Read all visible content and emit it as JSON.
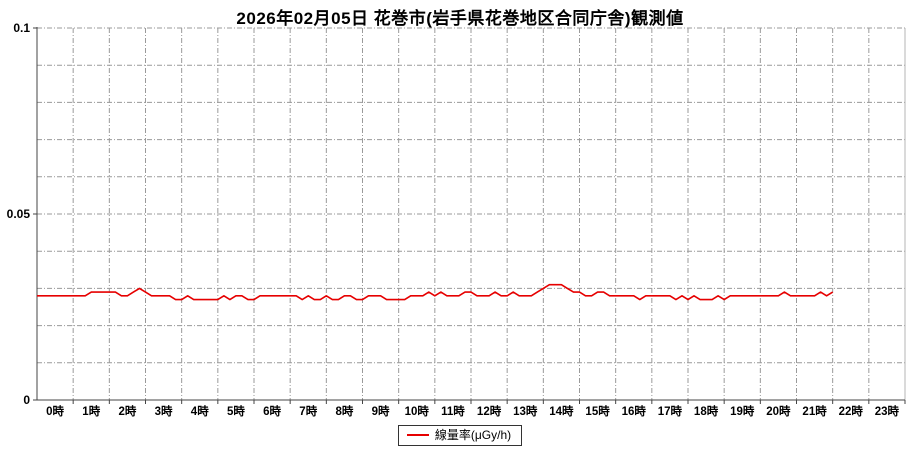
{
  "title": "2026年02月05日 花巻市(岩手県花巻地区合同庁舎)観測値",
  "legend": {
    "label": "線量率(μGy/h)",
    "line_color": "#e60000"
  },
  "chart_data": {
    "type": "line",
    "title": "2026年02月05日 花巻市(岩手県花巻地区合同庁舎)観測値",
    "xlabel": "",
    "ylabel": "",
    "unit": "μGy/h",
    "ylim": [
      0,
      0.1
    ],
    "ytick_values": [
      0,
      0.05,
      0.1
    ],
    "ytick_labels": [
      "0",
      "0.05",
      "0.1"
    ],
    "y_grid_interval": 0.01,
    "x_hours_range": [
      0,
      24
    ],
    "xtick_labels": [
      "0時",
      "1時",
      "2時",
      "3時",
      "4時",
      "5時",
      "6時",
      "7時",
      "8時",
      "9時",
      "10時",
      "11時",
      "12時",
      "13時",
      "14時",
      "15時",
      "16時",
      "17時",
      "18時",
      "19時",
      "20時",
      "21時",
      "22時",
      "23時"
    ],
    "grid": true,
    "legend_position": "bottom",
    "series": [
      {
        "name": "線量率(μGy/h)",
        "color": "#e60000",
        "start_time": "00:00",
        "end_time": "22:00",
        "interval_minutes": 10,
        "values": [
          0.028,
          0.028,
          0.028,
          0.028,
          0.028,
          0.028,
          0.028,
          0.028,
          0.028,
          0.029,
          0.029,
          0.029,
          0.029,
          0.029,
          0.028,
          0.028,
          0.029,
          0.03,
          0.029,
          0.028,
          0.028,
          0.028,
          0.028,
          0.027,
          0.027,
          0.028,
          0.027,
          0.027,
          0.027,
          0.027,
          0.027,
          0.028,
          0.027,
          0.028,
          0.028,
          0.027,
          0.027,
          0.028,
          0.028,
          0.028,
          0.028,
          0.028,
          0.028,
          0.028,
          0.027,
          0.028,
          0.027,
          0.027,
          0.028,
          0.027,
          0.027,
          0.028,
          0.028,
          0.027,
          0.027,
          0.028,
          0.028,
          0.028,
          0.027,
          0.027,
          0.027,
          0.027,
          0.028,
          0.028,
          0.028,
          0.029,
          0.028,
          0.029,
          0.028,
          0.028,
          0.028,
          0.029,
          0.029,
          0.028,
          0.028,
          0.028,
          0.029,
          0.028,
          0.028,
          0.029,
          0.028,
          0.028,
          0.028,
          0.029,
          0.03,
          0.031,
          0.031,
          0.031,
          0.03,
          0.029,
          0.029,
          0.028,
          0.028,
          0.029,
          0.029,
          0.028,
          0.028,
          0.028,
          0.028,
          0.028,
          0.027,
          0.028,
          0.028,
          0.028,
          0.028,
          0.028,
          0.027,
          0.028,
          0.027,
          0.028,
          0.027,
          0.027,
          0.027,
          0.028,
          0.027,
          0.028,
          0.028,
          0.028,
          0.028,
          0.028,
          0.028,
          0.028,
          0.028,
          0.028,
          0.029,
          0.028,
          0.028,
          0.028,
          0.028,
          0.028,
          0.029,
          0.028,
          0.029
        ]
      }
    ]
  }
}
